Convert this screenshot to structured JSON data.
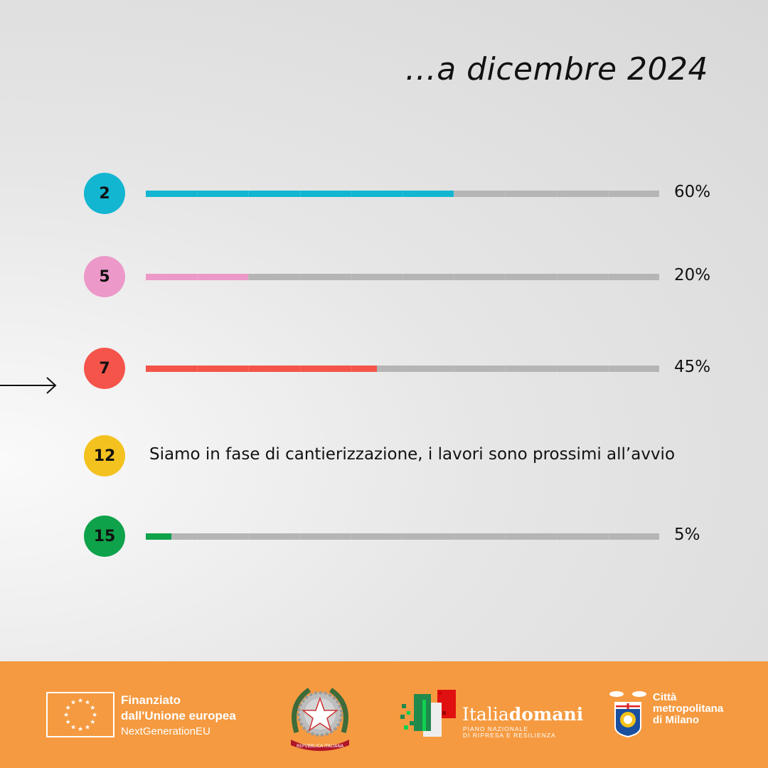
{
  "header": {
    "title": "…a dicembre 2024"
  },
  "chart_data": {
    "type": "bar",
    "title": "…a dicembre 2024",
    "categories": [
      "2",
      "5",
      "7",
      "12",
      "15"
    ],
    "values": [
      60,
      20,
      45,
      null,
      5
    ],
    "value_labels": [
      "60%",
      "20%",
      "45%",
      "",
      "5%"
    ],
    "colors": [
      "#12b6d1",
      "#ec98c9",
      "#f4544a",
      "#f4c21f",
      "#0ea24a"
    ],
    "notes": {
      "12": "Siamo in fase di cantierizzazione, i lavori sono prossimi all’avvio"
    },
    "highlighted": "7",
    "ylim": [
      0,
      100
    ]
  },
  "footer": {
    "eu": {
      "line1": "Finanziato",
      "line2": "dall'Unione europea",
      "line3": "NextGenerationEU"
    },
    "repubblica": "REPVBBLICA ITALIANA",
    "italiadomani": {
      "name_light": "Italia",
      "name_bold": "domani",
      "sub1": "PIANO NAZIONALE",
      "sub2": "DI RIPRESA E RESILIENZA"
    },
    "milano": {
      "line1": "Città",
      "line2": "metropolitana",
      "line3": "di Milano"
    }
  }
}
